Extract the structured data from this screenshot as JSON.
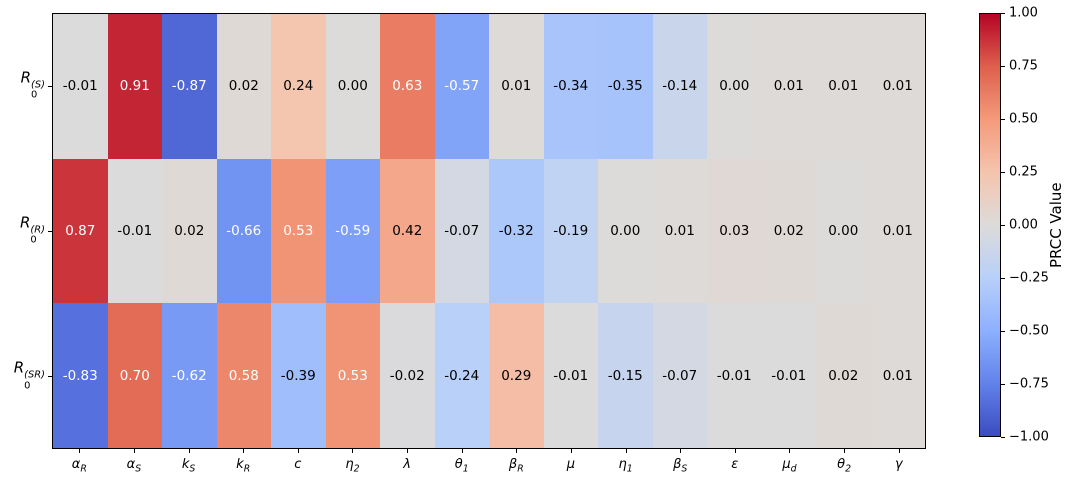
{
  "chart_data": {
    "type": "heatmap",
    "title": "",
    "xlabel": "",
    "ylabel": "",
    "colorbar_label": "PRCC Value",
    "vmin": -1.0,
    "vmax": 1.0,
    "grid": false,
    "rows": [
      {
        "base": "R",
        "sub": "0",
        "sup": "(S)"
      },
      {
        "base": "R",
        "sub": "0",
        "sup": "(R)"
      },
      {
        "base": "R",
        "sub": "0",
        "sup": "(SR)"
      }
    ],
    "columns": [
      {
        "base": "α",
        "sub": "R"
      },
      {
        "base": "α",
        "sub": "S"
      },
      {
        "base": "k",
        "sub": "S"
      },
      {
        "base": "k",
        "sub": "R"
      },
      {
        "base": "c",
        "sub": ""
      },
      {
        "base": "η",
        "sub": "2"
      },
      {
        "base": "λ",
        "sub": ""
      },
      {
        "base": "θ",
        "sub": "1"
      },
      {
        "base": "β",
        "sub": "R"
      },
      {
        "base": "μ",
        "sub": ""
      },
      {
        "base": "η",
        "sub": "1"
      },
      {
        "base": "β",
        "sub": "S"
      },
      {
        "base": "ε",
        "sub": ""
      },
      {
        "base": "μ",
        "sub": "d"
      },
      {
        "base": "θ",
        "sub": "2"
      },
      {
        "base": "γ",
        "sub": ""
      }
    ],
    "values": [
      [
        -0.01,
        0.91,
        -0.87,
        0.02,
        0.24,
        0.0,
        0.63,
        -0.57,
        0.01,
        -0.34,
        -0.35,
        -0.14,
        0.0,
        0.01,
        0.01,
        0.01
      ],
      [
        0.87,
        -0.01,
        0.02,
        -0.66,
        0.53,
        -0.59,
        0.42,
        -0.07,
        -0.32,
        -0.19,
        0.0,
        0.01,
        0.03,
        0.02,
        0.0,
        0.01
      ],
      [
        -0.83,
        0.7,
        -0.62,
        0.58,
        -0.39,
        0.53,
        -0.02,
        -0.24,
        0.29,
        -0.01,
        -0.15,
        -0.07,
        -0.01,
        -0.01,
        0.02,
        0.01
      ]
    ],
    "colorbar_ticks": [
      {
        "value": 1.0,
        "label": "1.00"
      },
      {
        "value": 0.75,
        "label": "0.75"
      },
      {
        "value": 0.5,
        "label": "0.50"
      },
      {
        "value": 0.25,
        "label": "0.25"
      },
      {
        "value": 0.0,
        "label": "0.00"
      },
      {
        "value": -0.25,
        "label": "−0.25"
      },
      {
        "value": -0.5,
        "label": "−0.50"
      },
      {
        "value": -0.75,
        "label": "−0.75"
      },
      {
        "value": -1.0,
        "label": "−1.00"
      }
    ],
    "colormap": {
      "name": "coolwarm",
      "stops": [
        {
          "v": -1.0,
          "c": "#3B4CC0"
        },
        {
          "v": -0.75,
          "c": "#6282EA"
        },
        {
          "v": -0.5,
          "c": "#8DB0FE"
        },
        {
          "v": -0.25,
          "c": "#B8D0F9"
        },
        {
          "v": 0.0,
          "c": "#DDDBDA"
        },
        {
          "v": 0.25,
          "c": "#F5C4AD"
        },
        {
          "v": 0.5,
          "c": "#F49A7B"
        },
        {
          "v": 0.75,
          "c": "#DE604D"
        },
        {
          "v": 1.0,
          "c": "#B40426"
        }
      ]
    },
    "cell_text_colors": {
      "dark": "#000000",
      "light": "#ffffff",
      "white_text_threshold": 0.5
    }
  }
}
